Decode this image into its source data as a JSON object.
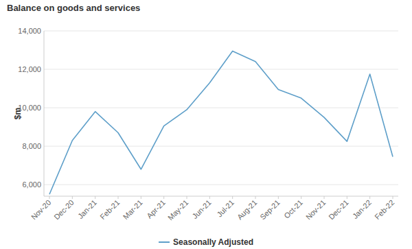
{
  "chart_data": {
    "type": "line",
    "title": "Balance on goods and services",
    "y_label": "$m",
    "categories": [
      "Nov-20",
      "Dec-20",
      "Jan-21",
      "Feb-21",
      "Mar-21",
      "Apr-21",
      "May-21",
      "Jun-21",
      "Jul-21",
      "Aug-21",
      "Sep-21",
      "Oct-21",
      "Nov-21",
      "Dec-21",
      "Jan-22",
      "Feb-22"
    ],
    "series": [
      {
        "name": "Seasonally Adjusted",
        "color": "#5e9fc9",
        "values": [
          5500,
          8300,
          9800,
          8700,
          6800,
          9050,
          9900,
          11300,
          12950,
          12400,
          10950,
          10500,
          9500,
          8250,
          11750,
          7450
        ]
      }
    ],
    "ylim": [
      5400,
      14000
    ],
    "yticks": [
      {
        "value": 6000,
        "label": "6,000"
      },
      {
        "value": 8000,
        "label": "8,000"
      },
      {
        "value": 10000,
        "label": "10,000"
      },
      {
        "value": 12000,
        "label": "12,000"
      },
      {
        "value": 14000,
        "label": "14,000"
      }
    ],
    "grid": true,
    "legend": "bottom"
  }
}
